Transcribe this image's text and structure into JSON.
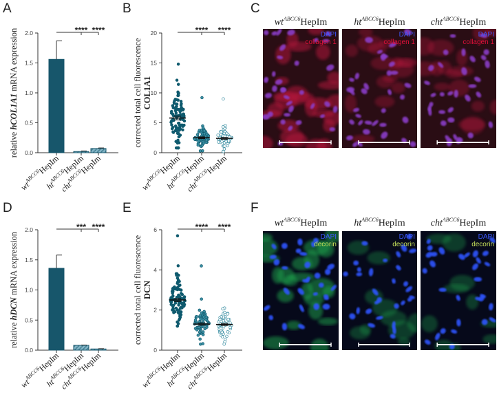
{
  "panel_labels": {
    "A": "A",
    "B": "B",
    "C": "C",
    "D": "D",
    "E": "E",
    "F": "F"
  },
  "colors": {
    "bar_fill": "#17566b",
    "bar_light": "#7fb2c4",
    "dot_dark": "#0f5a6e",
    "dot_mid": "#3b8fa3",
    "dot_light": "#a8cfdb",
    "collagen_red": "#e2103a",
    "decorin_green": "#c6e05a",
    "dapi_blue": "#3d59ff",
    "scale_bar": "#ffffff"
  },
  "image_titles": {
    "top": [
      {
        "base": "wt",
        "sup": "ABCC6",
        "rest": "HepIm"
      },
      {
        "base": "ht",
        "sup": "ABCC6",
        "rest": "HepIm"
      },
      {
        "base": "cht",
        "sup": "ABCC6",
        "rest": "HepIm"
      }
    ],
    "bottom": [
      {
        "base": "wt",
        "sup": "ABCC6",
        "rest": "HepIm"
      },
      {
        "base": "ht",
        "sup": "ABCC6",
        "rest": "HepIm"
      },
      {
        "base": "cht",
        "sup": "ABCC6",
        "rest": "HepIm"
      }
    ]
  },
  "micro_labels": {
    "top": [
      {
        "stain": "DAPI",
        "marker": "collagen 1"
      },
      {
        "stain": "DAPI",
        "marker": "collagen 1"
      },
      {
        "stain": "DAPI",
        "marker": "collagen 1"
      }
    ],
    "bottom": [
      {
        "stain": "DAPI",
        "marker": "decorin"
      },
      {
        "stain": "DAPI",
        "marker": "decorin"
      },
      {
        "stain": "DAPI",
        "marker": "decorin"
      }
    ]
  },
  "chart_data": [
    {
      "panel": "A",
      "type": "bar",
      "categories": [
        {
          "base": "wt",
          "sup": "ABCC6",
          "rest": "HepIm"
        },
        {
          "base": "ht",
          "sup": "ABCC6",
          "rest": "HepIm"
        },
        {
          "base": "cht",
          "sup": "ABCC6",
          "rest": "HepIm"
        }
      ],
      "values": [
        1.56,
        0.02,
        0.07
      ],
      "errors": [
        0.31,
        0.01,
        0.01
      ],
      "ylabel": {
        "pre": "relative ",
        "gene": "hCOL1A1",
        "post": " mRNA expression"
      },
      "ylim": [
        0,
        2.0
      ],
      "yticks": [
        "0.0",
        "0.5",
        "1.0",
        "1.5",
        "2.0"
      ],
      "significance": [
        {
          "label": "****",
          "from": 0,
          "to": 1
        },
        {
          "label": "****",
          "from": 0,
          "to": 2
        }
      ]
    },
    {
      "panel": "B",
      "type": "scatter",
      "categories": [
        {
          "base": "wt",
          "sup": "ABCC6",
          "rest": "HepIm"
        },
        {
          "base": "ht",
          "sup": "ABCC6",
          "rest": "HepIm"
        },
        {
          "base": "cht",
          "sup": "ABCC6",
          "rest": "HepIm"
        }
      ],
      "means": [
        5.8,
        2.5,
        2.4
      ],
      "errors": [
        0.3,
        0.15,
        0.15
      ],
      "ranges": [
        [
          0.8,
          14.8
        ],
        [
          0.3,
          9.2
        ],
        [
          0.2,
          9.0
        ]
      ],
      "ylabel": {
        "line1": "corrected total cell fluorescence",
        "line2": "COL1A1"
      },
      "ylim": [
        0,
        20
      ],
      "yticks": [
        "0",
        "5",
        "10",
        "15",
        "20"
      ],
      "significance": [
        {
          "label": "****",
          "from": 0,
          "to": 1
        },
        {
          "label": "****",
          "from": 0,
          "to": 2
        }
      ]
    },
    {
      "panel": "D",
      "type": "bar",
      "categories": [
        {
          "base": "wt",
          "sup": "ABCC6",
          "rest": "HepIm"
        },
        {
          "base": "ht",
          "sup": "ABCC6",
          "rest": "HepIm"
        },
        {
          "base": "cht",
          "sup": "ABCC6",
          "rest": "HepIm"
        }
      ],
      "values": [
        1.36,
        0.08,
        0.02
      ],
      "errors": [
        0.22,
        0.005,
        0.005
      ],
      "ylabel": {
        "pre": "relative ",
        "gene": "hDCN",
        "post": " mRNA expression"
      },
      "ylim": [
        0,
        2.0
      ],
      "yticks": [
        "0.0",
        "0.5",
        "1.0",
        "1.5",
        "2.0"
      ],
      "significance": [
        {
          "label": "***",
          "from": 0,
          "to": 1
        },
        {
          "label": "****",
          "from": 0,
          "to": 2
        }
      ]
    },
    {
      "panel": "E",
      "type": "scatter",
      "categories": [
        {
          "base": "wt",
          "sup": "ABCC6",
          "rest": "HepIm"
        },
        {
          "base": "ht",
          "sup": "ABCC6",
          "rest": "HepIm"
        },
        {
          "base": "cht",
          "sup": "ABCC6",
          "rest": "HepIm"
        }
      ],
      "means": [
        2.5,
        1.3,
        1.28
      ],
      "errors": [
        0.08,
        0.06,
        0.05
      ],
      "ranges": [
        [
          1.2,
          5.7
        ],
        [
          0.3,
          4.2
        ],
        [
          0.3,
          2.1
        ]
      ],
      "ylabel": {
        "line1": "corrected total cell fluorescence",
        "line2": "DCN"
      },
      "ylim": [
        0,
        6
      ],
      "yticks": [
        "0",
        "2",
        "4",
        "6"
      ],
      "significance": [
        {
          "label": "****",
          "from": 0,
          "to": 1
        },
        {
          "label": "****",
          "from": 0,
          "to": 2
        }
      ]
    }
  ]
}
